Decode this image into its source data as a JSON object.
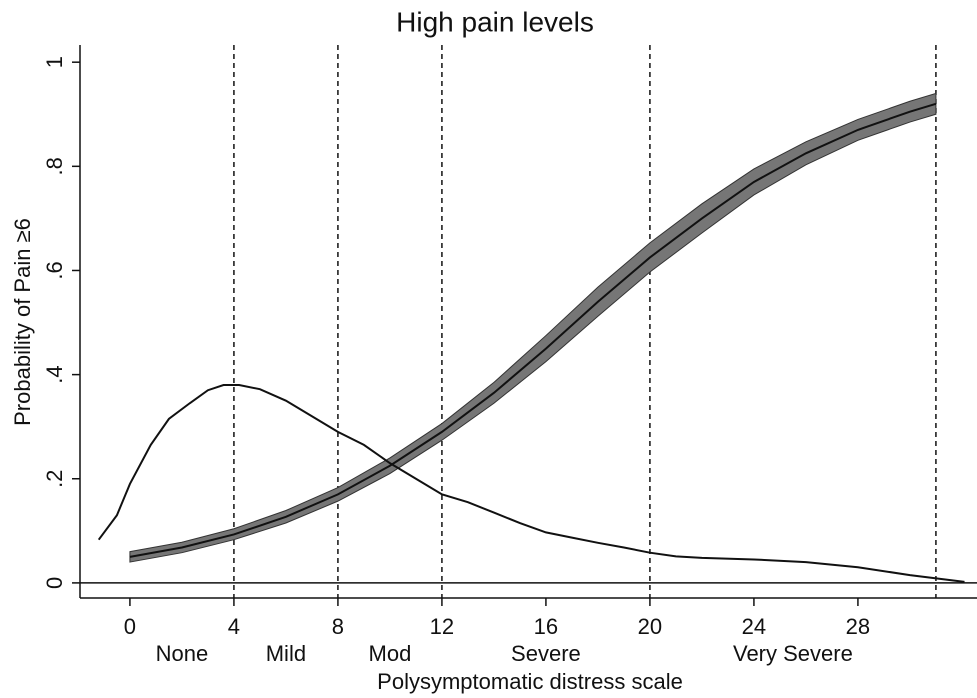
{
  "chart_data": {
    "type": "line",
    "title": "High pain levels",
    "x_label": "Polysymptomatic distress scale",
    "y_label": "Probability of Pain ≥6",
    "xlim": [
      -1.92,
      32.58
    ],
    "ylim": [
      -0.029,
      1.033
    ],
    "xticks": [
      0,
      4,
      8,
      12,
      16,
      20,
      24,
      28
    ],
    "yticks": [
      0,
      {
        "value": 0.2,
        "label": ".2"
      },
      {
        "value": 0.4,
        "label": ".4"
      },
      {
        "value": 0.6,
        "label": ".6"
      },
      {
        "value": 0.8,
        "label": ".8"
      },
      1
    ],
    "hline": 0,
    "vlines": [
      4,
      8,
      12,
      20,
      31
    ],
    "severity_labels": [
      "None",
      "Mild",
      "Mod",
      "Severe",
      "Very Severe"
    ],
    "series": [
      {
        "color": "#111111",
        "band_color": "#767676",
        "x": [
          0,
          2,
          4,
          6,
          8,
          10,
          12,
          14,
          16,
          18,
          20,
          22,
          24,
          26,
          28,
          30,
          31
        ],
        "values": [
          0.05,
          0.068,
          0.093,
          0.127,
          0.17,
          0.225,
          0.29,
          0.365,
          0.45,
          0.54,
          0.625,
          0.7,
          0.77,
          0.825,
          0.87,
          0.905,
          0.92
        ],
        "lower": [
          0.04,
          0.058,
          0.083,
          0.115,
          0.157,
          0.21,
          0.274,
          0.345,
          0.425,
          0.512,
          0.597,
          0.672,
          0.745,
          0.803,
          0.85,
          0.885,
          0.9
        ],
        "upper": [
          0.06,
          0.078,
          0.104,
          0.139,
          0.183,
          0.24,
          0.306,
          0.385,
          0.475,
          0.568,
          0.653,
          0.728,
          0.795,
          0.847,
          0.89,
          0.925,
          0.94
        ]
      },
      {
        "color": "#111111",
        "x": [
          -1.2,
          -0.5,
          0,
          0.8,
          1.5,
          2.3,
          3,
          3.6,
          4.2,
          5,
          6,
          7,
          8,
          9,
          10,
          11,
          12,
          13,
          14,
          15,
          16,
          17,
          18,
          19,
          20,
          21,
          22,
          24,
          26,
          28,
          30,
          32.1
        ],
        "values": [
          0.083,
          0.13,
          0.19,
          0.265,
          0.315,
          0.345,
          0.37,
          0.38,
          0.38,
          0.372,
          0.35,
          0.32,
          0.29,
          0.265,
          0.23,
          0.2,
          0.17,
          0.155,
          0.135,
          0.115,
          0.097,
          0.087,
          0.077,
          0.068,
          0.058,
          0.051,
          0.048,
          0.045,
          0.04,
          0.03,
          0.015,
          0.002
        ]
      }
    ]
  }
}
